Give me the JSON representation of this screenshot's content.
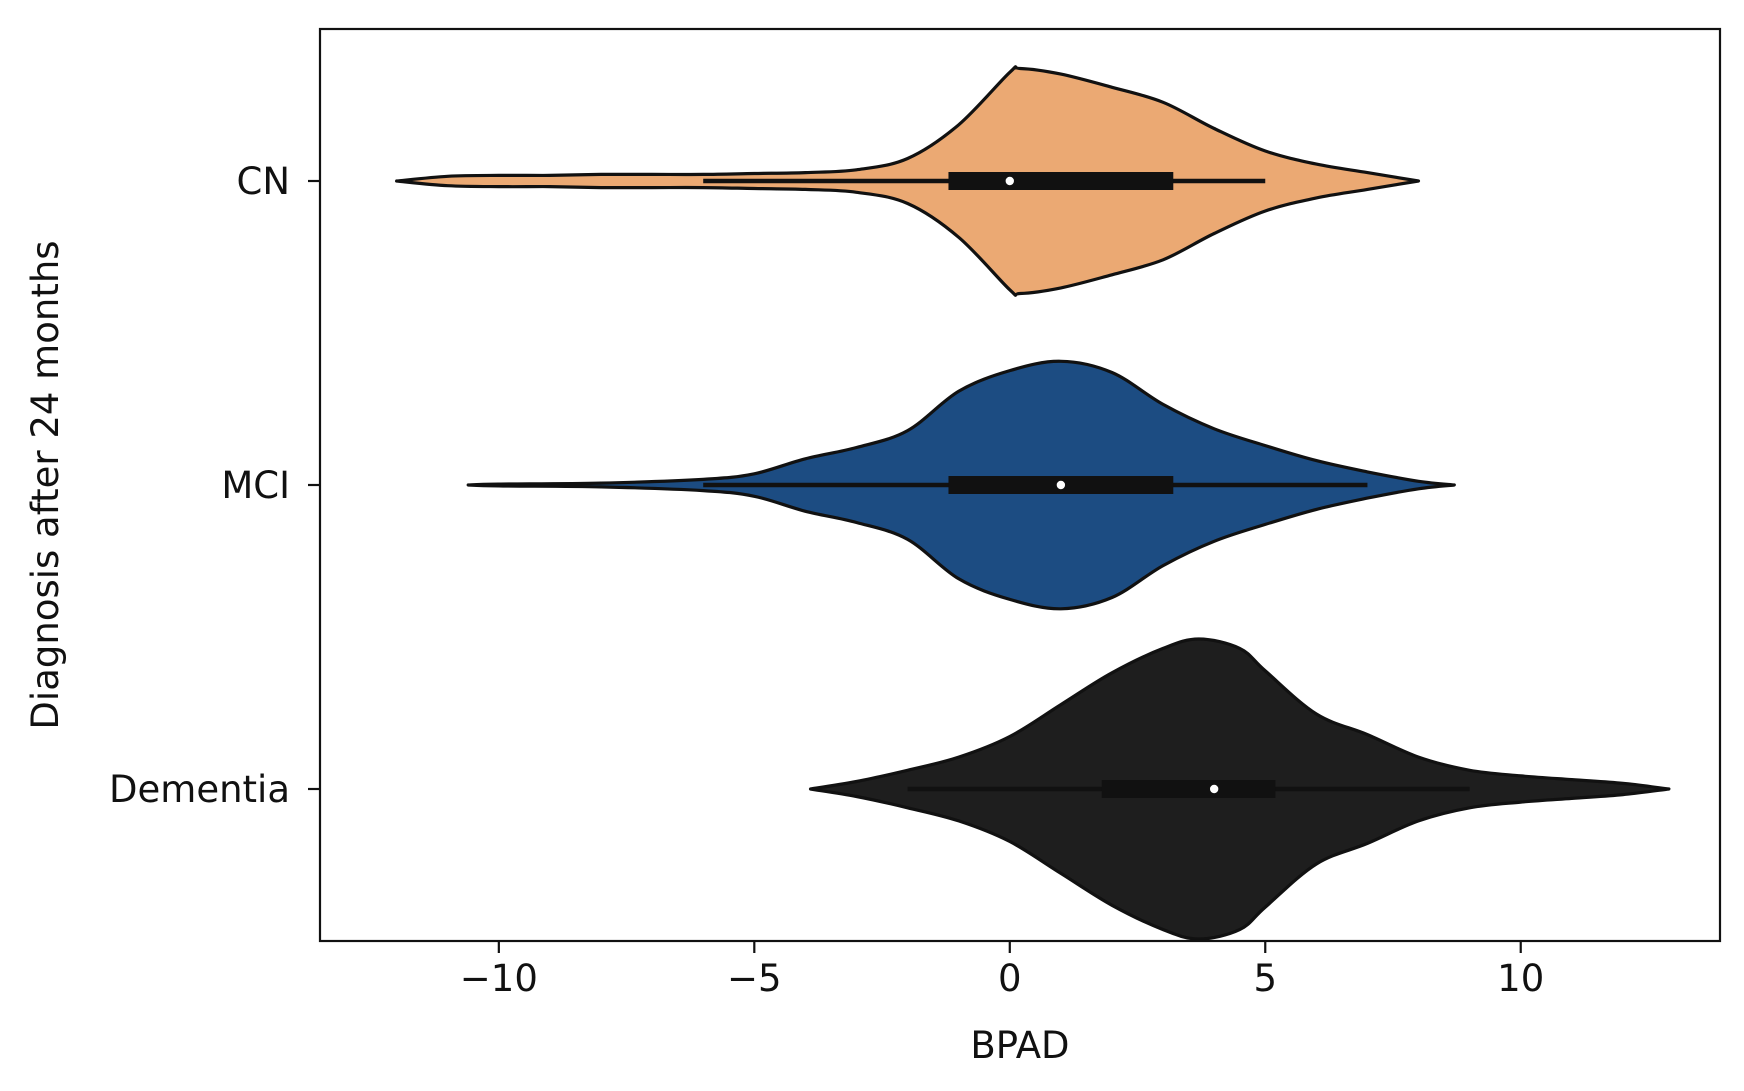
{
  "chart_data": {
    "type": "violin",
    "orientation": "horizontal",
    "title": "",
    "xlabel": "BPAD",
    "ylabel": "Diagnosis after 24 months",
    "xlim": [
      -13.5,
      13.9
    ],
    "xticks": [
      -10,
      -5,
      0,
      5,
      10
    ],
    "xtick_labels": [
      "−10",
      "−5",
      "0",
      "5",
      "10"
    ],
    "grid": false,
    "legend": "none",
    "categories": [
      "CN",
      "MCI",
      "Dementia"
    ],
    "violins": [
      {
        "name": "CN",
        "color": "#EBA973",
        "range": [
          -12.0,
          8.0
        ],
        "whiskers": [
          -6.0,
          5.0
        ],
        "q1": -1.2,
        "q3": 3.2,
        "median": 0.0,
        "density": [
          [
            -12.0,
            0.0
          ],
          [
            -11.0,
            0.025
          ],
          [
            -10.0,
            0.03
          ],
          [
            -9.0,
            0.03
          ],
          [
            -8.0,
            0.035
          ],
          [
            -7.0,
            0.035
          ],
          [
            -6.0,
            0.035
          ],
          [
            -5.0,
            0.04
          ],
          [
            -4.0,
            0.045
          ],
          [
            -3.0,
            0.06
          ],
          [
            -2.0,
            0.12
          ],
          [
            -1.0,
            0.3
          ],
          [
            0.0,
            0.58
          ],
          [
            0.2,
            0.6
          ],
          [
            1.0,
            0.57
          ],
          [
            2.0,
            0.5
          ],
          [
            3.0,
            0.42
          ],
          [
            4.0,
            0.28
          ],
          [
            5.0,
            0.16
          ],
          [
            6.0,
            0.09
          ],
          [
            7.0,
            0.045
          ],
          [
            8.0,
            0.0
          ]
        ]
      },
      {
        "name": "MCI",
        "color": "#1C4C82",
        "range": [
          -10.6,
          8.7
        ],
        "whiskers": [
          -6.0,
          7.0
        ],
        "q1": -1.2,
        "q3": 3.2,
        "median": 1.0,
        "density": [
          [
            -10.6,
            0.0
          ],
          [
            -10.0,
            0.005
          ],
          [
            -8.0,
            0.01
          ],
          [
            -6.0,
            0.03
          ],
          [
            -5.0,
            0.06
          ],
          [
            -4.0,
            0.14
          ],
          [
            -3.0,
            0.2
          ],
          [
            -2.0,
            0.29
          ],
          [
            -1.0,
            0.5
          ],
          [
            0.0,
            0.61
          ],
          [
            1.0,
            0.66
          ],
          [
            2.0,
            0.6
          ],
          [
            3.0,
            0.43
          ],
          [
            4.0,
            0.3
          ],
          [
            5.0,
            0.21
          ],
          [
            6.0,
            0.13
          ],
          [
            7.0,
            0.07
          ],
          [
            8.0,
            0.02
          ],
          [
            8.7,
            0.0
          ]
        ]
      },
      {
        "name": "Dementia",
        "color": "#1E1E1E",
        "range": [
          -3.9,
          12.9
        ],
        "whiskers": [
          -2.0,
          9.0
        ],
        "q1": 1.8,
        "q3": 5.2,
        "median": 4.0,
        "density": [
          [
            -3.9,
            0.0
          ],
          [
            -3.0,
            0.04
          ],
          [
            -2.0,
            0.1
          ],
          [
            -1.0,
            0.17
          ],
          [
            0.0,
            0.28
          ],
          [
            1.0,
            0.45
          ],
          [
            2.0,
            0.62
          ],
          [
            3.0,
            0.75
          ],
          [
            3.7,
            0.8
          ],
          [
            4.5,
            0.75
          ],
          [
            5.0,
            0.63
          ],
          [
            6.0,
            0.4
          ],
          [
            7.0,
            0.29
          ],
          [
            8.0,
            0.17
          ],
          [
            9.0,
            0.1
          ],
          [
            10.0,
            0.07
          ],
          [
            11.0,
            0.05
          ],
          [
            12.0,
            0.03
          ],
          [
            12.9,
            0.0
          ]
        ]
      }
    ]
  }
}
